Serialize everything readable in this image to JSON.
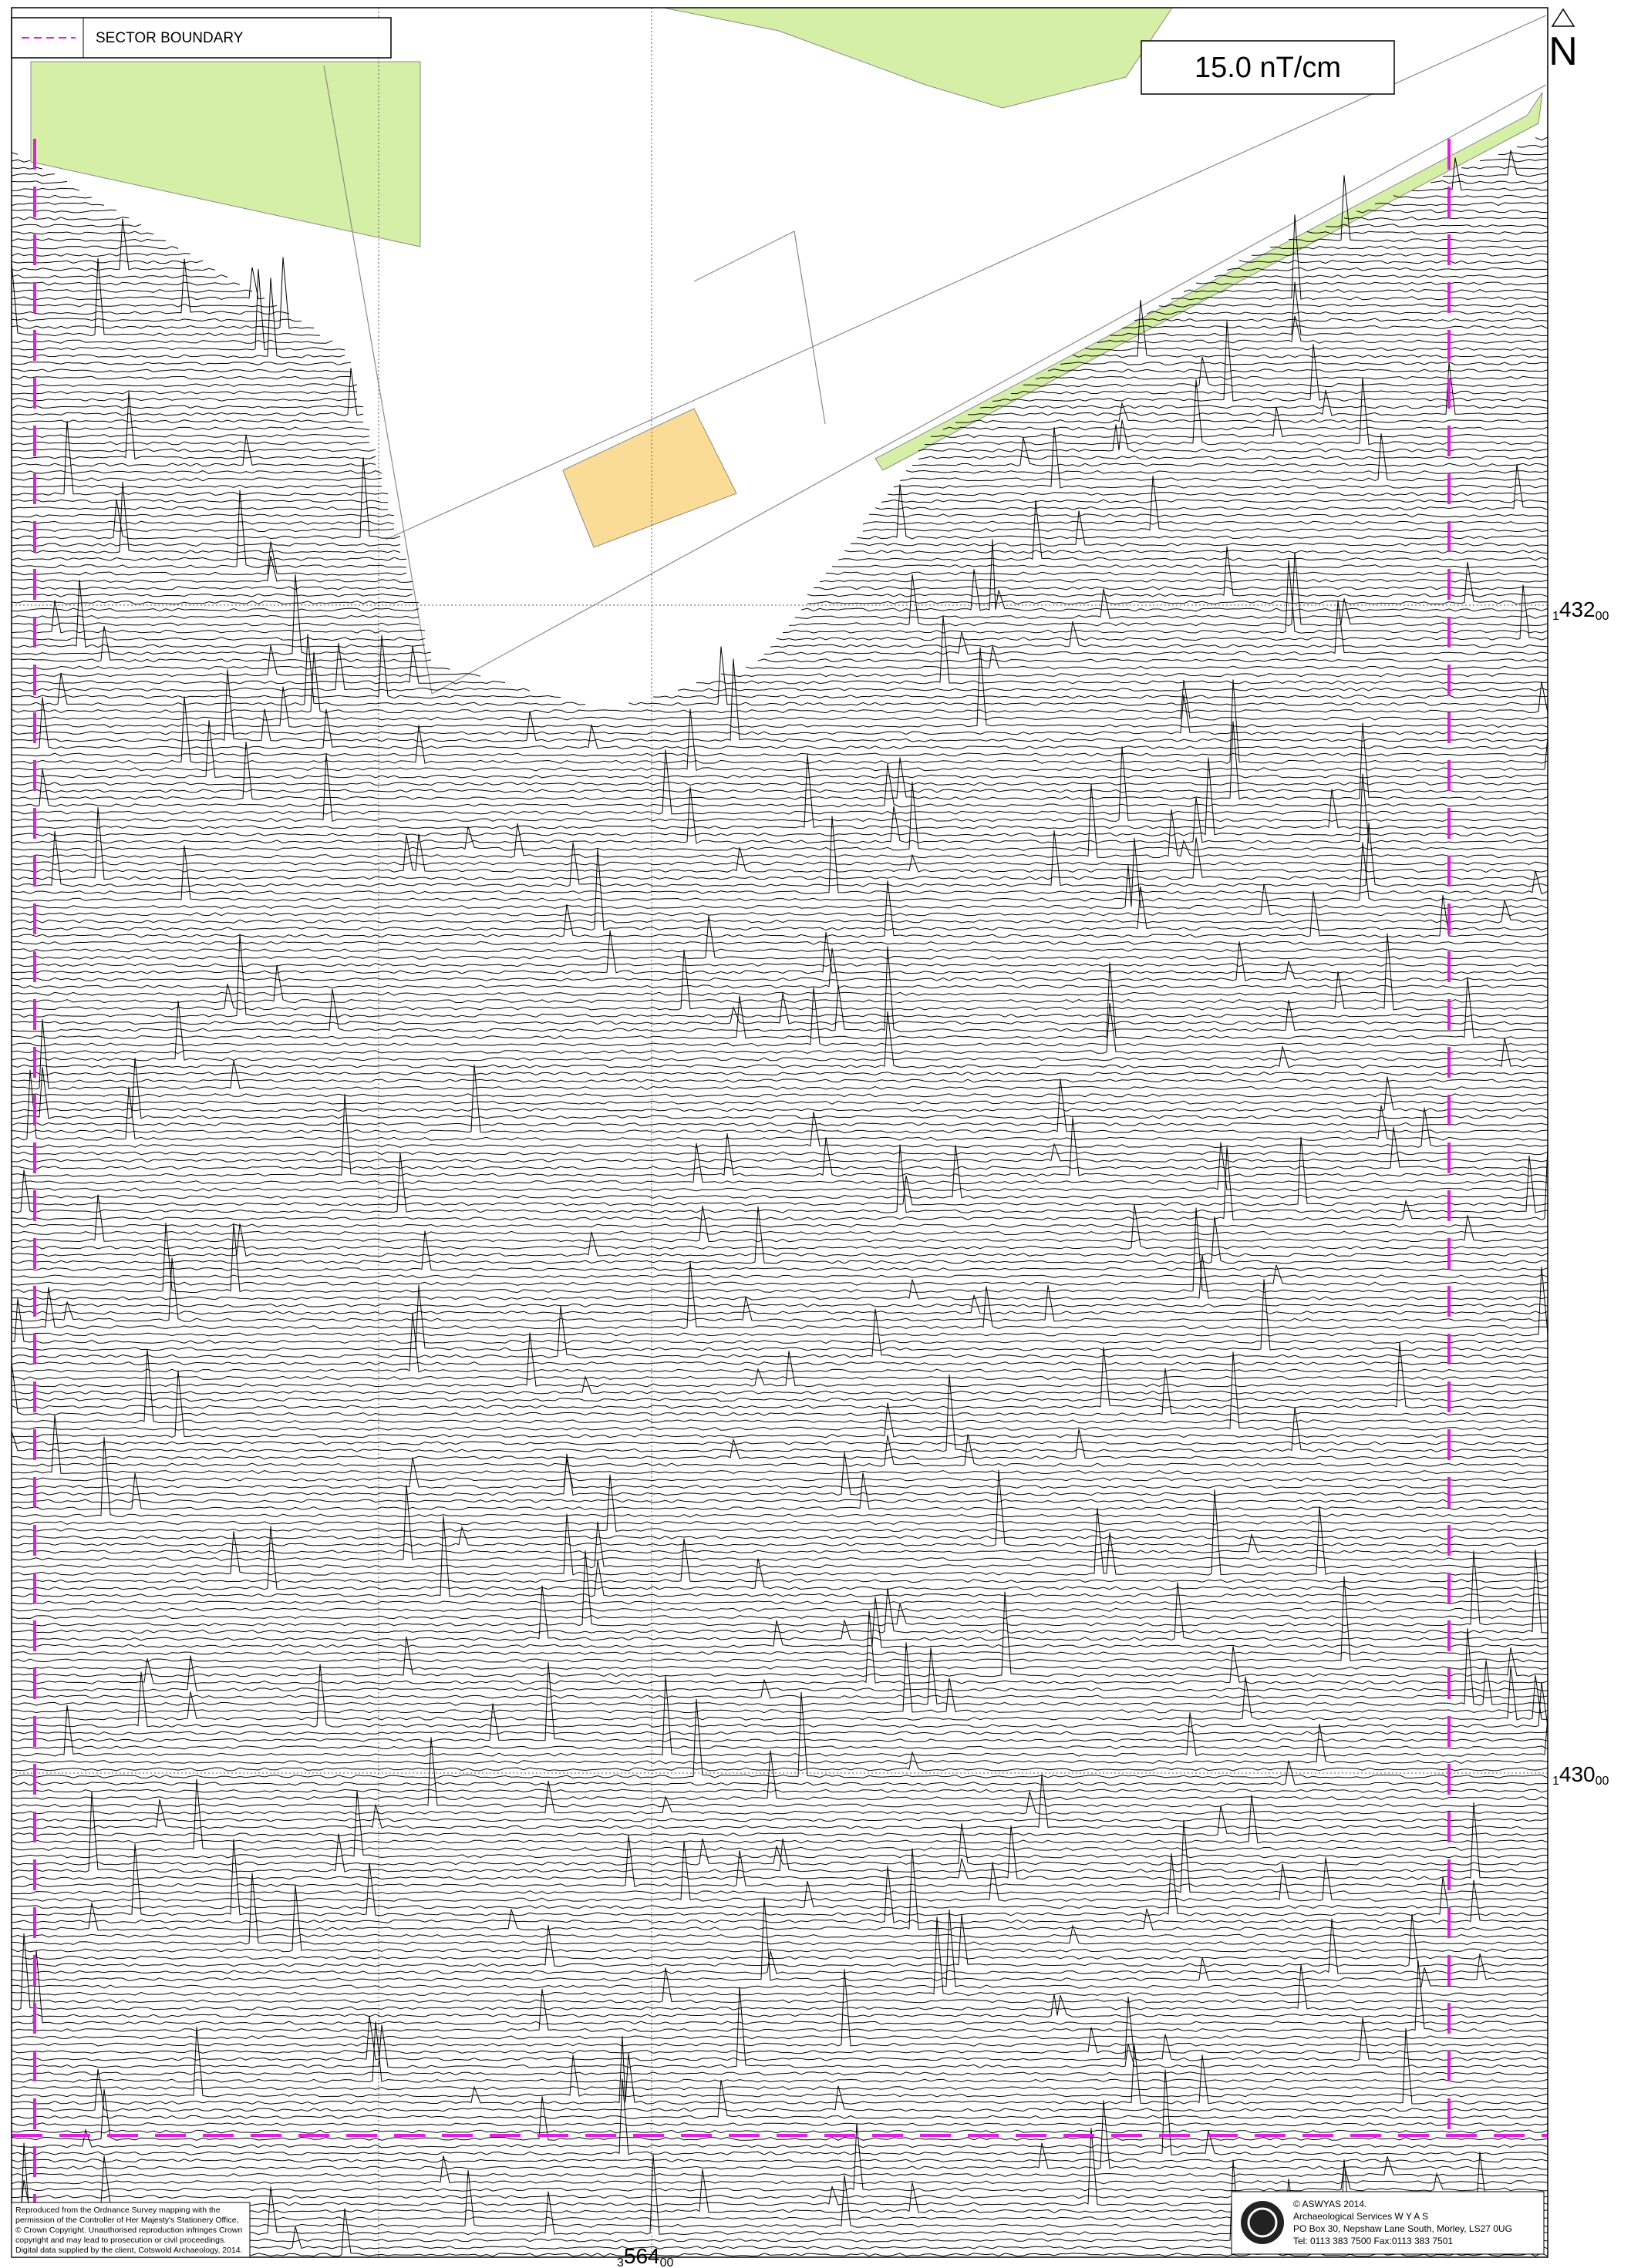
{
  "legend": {
    "label": "SECTOR BOUNDARY"
  },
  "scale_label": "15.0 nT/cm",
  "north": "N",
  "grid_labels": [
    {
      "prefix": "1",
      "main": "432",
      "suffix": "00"
    },
    {
      "prefix": "1",
      "main": "430",
      "suffix": "00"
    },
    {
      "prefix": "3",
      "main": "564",
      "suffix": "00"
    }
  ],
  "copyright": [
    "Reproduced from the Ordnance Survey mapping with the",
    "permission of the Controller of Her Majesty's Stationery Office,",
    "© Crown Copyright. Unauthorised reproduction infringes Crown",
    "copyright and may lead to prosecution or civil proceedings.",
    "Digital data supplied by the client, Cotswold Archaeology, 2014."
  ],
  "company": [
    "© ASWYAS 2014.",
    "Archaeological Services W Y A S",
    "PO Box 30, Nepshaw Lane South, Morley, LS27 0UG",
    "Tel: 0113 383 7500   Fax:0113 383 7501"
  ]
}
